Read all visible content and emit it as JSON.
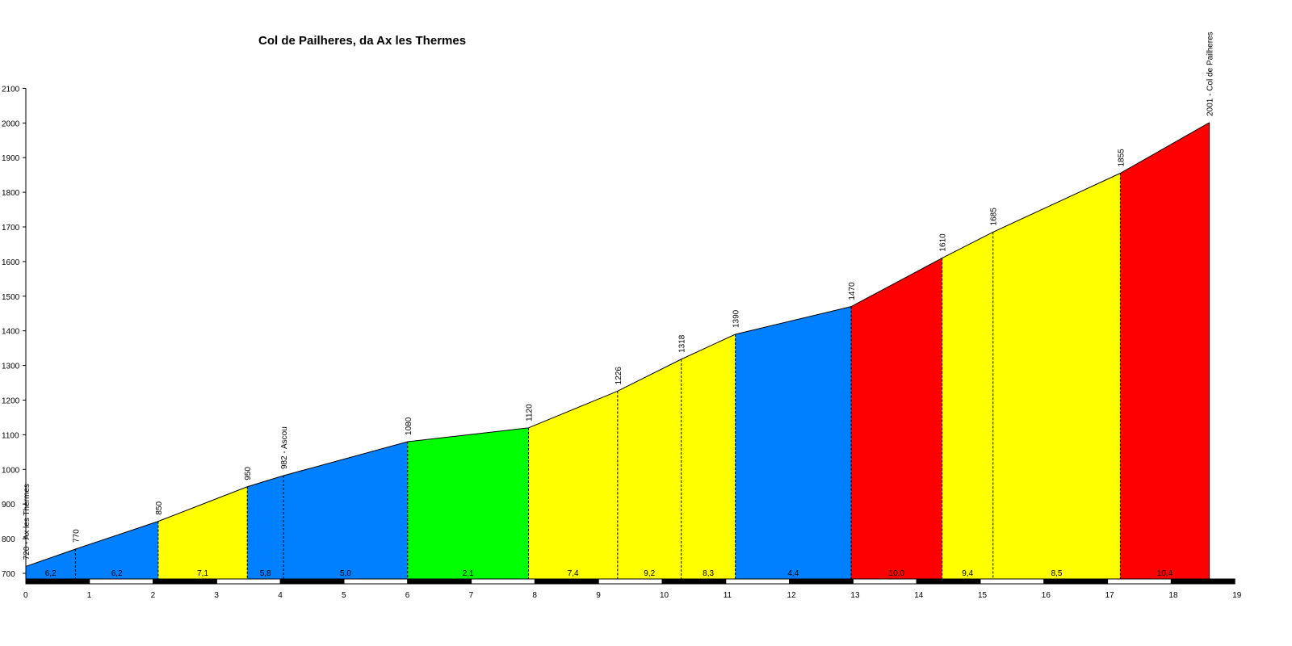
{
  "chart_data": {
    "type": "area",
    "title": "Col de Pailheres, da Ax les Thermes",
    "xlabel": "",
    "ylabel": "",
    "xlim": [
      0,
      19
    ],
    "ylim": [
      680,
      2100
    ],
    "x_ticks": [
      0,
      1,
      2,
      3,
      4,
      5,
      6,
      7,
      8,
      9,
      10,
      11,
      12,
      13,
      14,
      15,
      16,
      17,
      18,
      19
    ],
    "y_ticks": [
      700,
      800,
      900,
      1000,
      1100,
      1200,
      1300,
      1400,
      1500,
      1600,
      1700,
      1800,
      1900,
      2000,
      2100
    ],
    "grid": false,
    "points": [
      {
        "x": 0,
        "y": 720,
        "label": "720 - Ax les Thermes"
      },
      {
        "x": 0.78,
        "y": 770,
        "label": "770"
      },
      {
        "x": 2.08,
        "y": 850,
        "label": "850"
      },
      {
        "x": 3.48,
        "y": 950,
        "label": "950"
      },
      {
        "x": 4.05,
        "y": 982,
        "label": "982 - Ascou"
      },
      {
        "x": 6.0,
        "y": 1080,
        "label": "1080"
      },
      {
        "x": 7.9,
        "y": 1120,
        "label": "1120"
      },
      {
        "x": 9.3,
        "y": 1226,
        "label": "1226"
      },
      {
        "x": 10.3,
        "y": 1318,
        "label": "1318"
      },
      {
        "x": 11.15,
        "y": 1390,
        "label": "1390"
      },
      {
        "x": 12.97,
        "y": 1470,
        "label": "1470"
      },
      {
        "x": 14.4,
        "y": 1610,
        "label": "1610"
      },
      {
        "x": 15.2,
        "y": 1685,
        "label": "1685"
      },
      {
        "x": 17.2,
        "y": 1855,
        "label": "1855"
      },
      {
        "x": 18.6,
        "y": 2001,
        "label": "2001 - Col de Pailheres"
      }
    ],
    "segments": [
      {
        "from": 0,
        "to": 0.78,
        "gradient": "6,2",
        "color": "#0080ff"
      },
      {
        "from": 0.78,
        "to": 2.08,
        "gradient": "6,2",
        "color": "#0080ff"
      },
      {
        "from": 2.08,
        "to": 3.48,
        "gradient": "7,1",
        "color": "#ffff00"
      },
      {
        "from": 3.48,
        "to": 4.05,
        "gradient": "5,8",
        "color": "#0080ff"
      },
      {
        "from": 4.05,
        "to": 6.0,
        "gradient": "5,0",
        "color": "#0080ff"
      },
      {
        "from": 6.0,
        "to": 7.9,
        "gradient": "2,1",
        "color": "#00ff00"
      },
      {
        "from": 7.9,
        "to": 9.3,
        "gradient": "7,4",
        "color": "#ffff00"
      },
      {
        "from": 9.3,
        "to": 10.3,
        "gradient": "9,2",
        "color": "#ffff00"
      },
      {
        "from": 10.3,
        "to": 11.15,
        "gradient": "8,3",
        "color": "#ffff00"
      },
      {
        "from": 11.15,
        "to": 12.97,
        "gradient": "4,4",
        "color": "#0080ff"
      },
      {
        "from": 12.97,
        "to": 14.4,
        "gradient": "10,0",
        "color": "#ff0000"
      },
      {
        "from": 14.4,
        "to": 15.2,
        "gradient": "9,4",
        "color": "#ffff00"
      },
      {
        "from": 15.2,
        "to": 17.2,
        "gradient": "8,5",
        "color": "#ffff00"
      },
      {
        "from": 17.2,
        "to": 18.6,
        "gradient": "10,4",
        "color": "#ff0000"
      }
    ]
  }
}
